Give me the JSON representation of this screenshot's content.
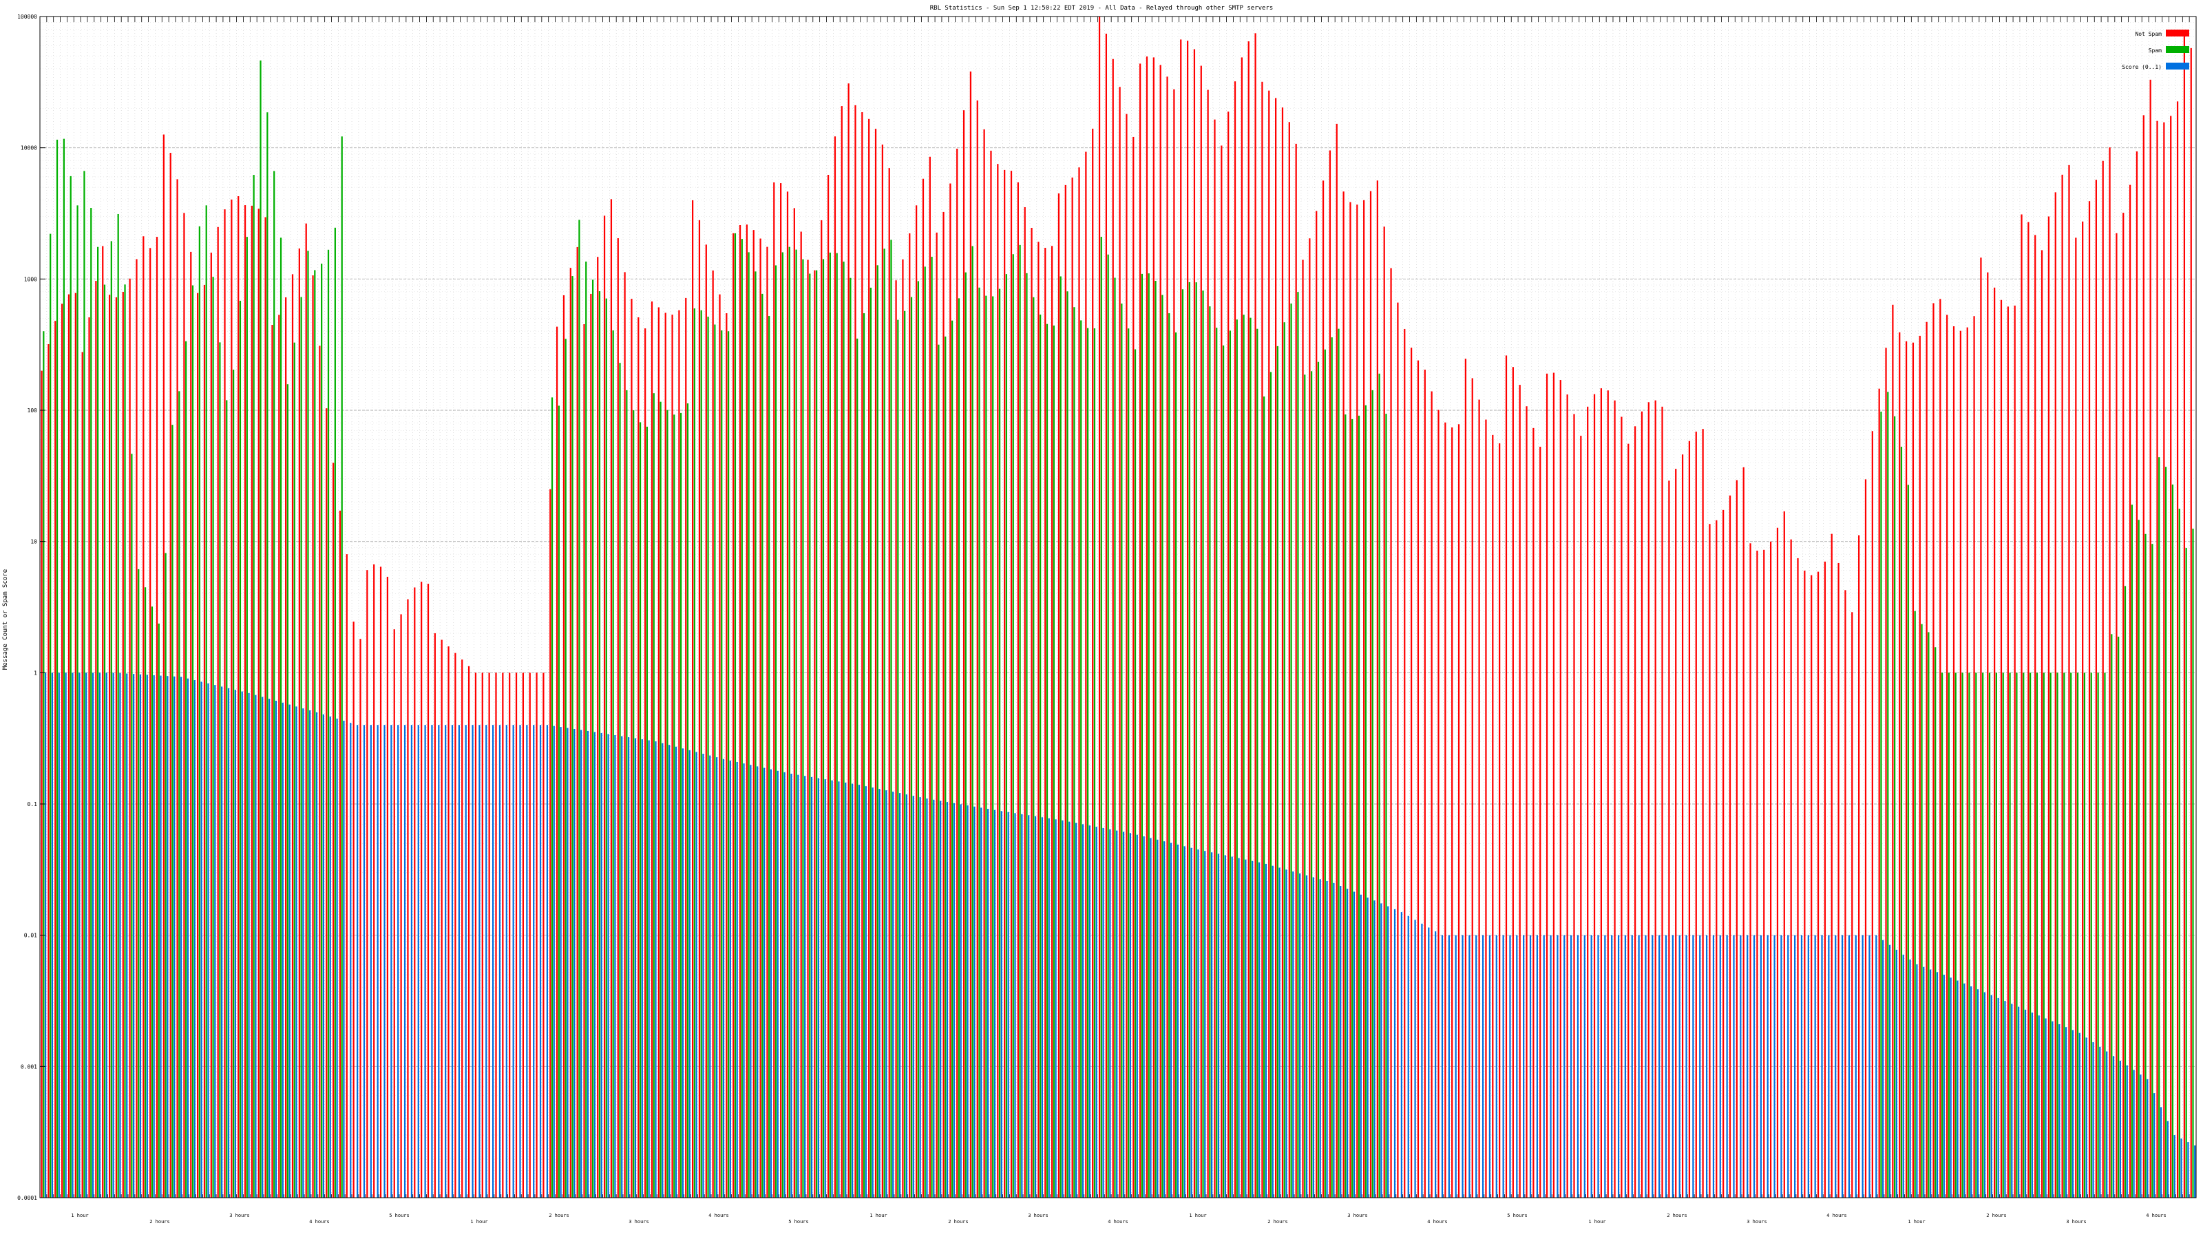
{
  "chart_data": {
    "type": "bar",
    "title": "RBL Statistics - Sun Sep  1 12:50:22 EDT 2019 - All Data - Relayed through other SMTP servers",
    "ylabel": "Message Count or Spam Score",
    "xlabel": "",
    "yscale": "log",
    "ylim": [
      0.0001,
      100000
    ],
    "yticks": [
      "0.0001",
      "0.001",
      "0.01",
      "0.1",
      "1",
      "10",
      "100",
      "1000",
      "10000",
      "100000"
    ],
    "grid": true,
    "legend_position": "top-right",
    "series": [
      {
        "name": "Not Spam",
        "color": "#ff0000",
        "anchors": [
          [
            0,
            200
          ],
          [
            6,
            450
          ],
          [
            10,
            1500
          ],
          [
            16,
            2300
          ],
          [
            18,
            6000
          ],
          [
            24,
            600
          ],
          [
            30,
            4000
          ],
          [
            34,
            1000
          ],
          [
            40,
            2000
          ],
          [
            46,
            3
          ],
          [
            48,
            3
          ],
          [
            52,
            3
          ],
          [
            58,
            2
          ],
          [
            64,
            1
          ],
          [
            70,
            1
          ],
          [
            74,
            1
          ],
          [
            76,
            400
          ],
          [
            80,
            1000
          ],
          [
            84,
            5000
          ],
          [
            90,
            500
          ],
          [
            96,
            2000
          ],
          [
            102,
            1000
          ],
          [
            108,
            3000
          ],
          [
            114,
            1000
          ],
          [
            120,
            30000
          ],
          [
            126,
            2000
          ],
          [
            132,
            5000
          ],
          [
            138,
            40000
          ],
          [
            144,
            6000
          ],
          [
            150,
            3000
          ],
          [
            156,
            50000
          ],
          [
            162,
            20000
          ],
          [
            168,
            40000
          ],
          [
            174,
            10000
          ],
          [
            180,
            50000
          ],
          [
            186,
            3000
          ],
          [
            192,
            10000
          ],
          [
            198,
            4000
          ],
          [
            204,
            200
          ],
          [
            210,
            150
          ],
          [
            216,
            120
          ],
          [
            222,
            90
          ],
          [
            228,
            70
          ],
          [
            234,
            60
          ],
          [
            240,
            50
          ],
          [
            246,
            30
          ],
          [
            252,
            20
          ],
          [
            258,
            15
          ],
          [
            264,
            10
          ],
          [
            268,
            5
          ],
          [
            272,
            300
          ],
          [
            274,
            700
          ],
          [
            280,
            800
          ],
          [
            286,
            1000
          ],
          [
            292,
            1500
          ],
          [
            296,
            2000
          ],
          [
            300,
            4000
          ],
          [
            306,
            5000
          ],
          [
            312,
            30000
          ],
          [
            316,
            50000
          ],
          [
            317,
            50000
          ]
        ]
      },
      {
        "name": "Spam",
        "color": "#00b000",
        "anchors": [
          [
            0,
            400
          ],
          [
            3,
            25000
          ],
          [
            6,
            4000
          ],
          [
            10,
            1000
          ],
          [
            12,
            2000
          ],
          [
            14,
            4
          ],
          [
            18,
            4
          ],
          [
            20,
            300
          ],
          [
            24,
            5000
          ],
          [
            28,
            100
          ],
          [
            32,
            30000
          ],
          [
            36,
            300
          ],
          [
            40,
            2000
          ],
          [
            44,
            7000
          ],
          [
            46,
            0
          ],
          [
            74,
            0
          ],
          [
            76,
            100
          ],
          [
            80,
            3000
          ],
          [
            84,
            500
          ],
          [
            90,
            100
          ],
          [
            96,
            300
          ],
          [
            102,
            1000
          ],
          [
            108,
            700
          ],
          [
            114,
            1000
          ],
          [
            120,
            500
          ],
          [
            126,
            1000
          ],
          [
            132,
            700
          ],
          [
            138,
            1500
          ],
          [
            144,
            2000
          ],
          [
            150,
            700
          ],
          [
            156,
            1000
          ],
          [
            162,
            500
          ],
          [
            168,
            500
          ],
          [
            174,
            300
          ],
          [
            180,
            200
          ],
          [
            186,
            400
          ],
          [
            192,
            200
          ],
          [
            198,
            150
          ],
          [
            200,
            0
          ],
          [
            270,
            0
          ],
          [
            272,
            100
          ],
          [
            276,
            6
          ],
          [
            280,
            1
          ],
          [
            290,
            1
          ],
          [
            300,
            1
          ],
          [
            304,
            1
          ],
          [
            308,
            15
          ],
          [
            312,
            20
          ],
          [
            316,
            10
          ],
          [
            317,
            10
          ]
        ]
      },
      {
        "name": "Score (0..1)",
        "color": "#0070e0",
        "anchors": [
          [
            0,
            1.0
          ],
          [
            10,
            1.0
          ],
          [
            20,
            0.93
          ],
          [
            30,
            0.7
          ],
          [
            40,
            0.5
          ],
          [
            46,
            0.4
          ],
          [
            74,
            0.4
          ],
          [
            80,
            0.36
          ],
          [
            90,
            0.3
          ],
          [
            100,
            0.22
          ],
          [
            110,
            0.17
          ],
          [
            120,
            0.14
          ],
          [
            130,
            0.11
          ],
          [
            140,
            0.09
          ],
          [
            150,
            0.075
          ],
          [
            160,
            0.06
          ],
          [
            170,
            0.045
          ],
          [
            180,
            0.035
          ],
          [
            190,
            0.025
          ],
          [
            200,
            0.015
          ],
          [
            206,
            0.01
          ],
          [
            270,
            0.01
          ],
          [
            276,
            0.006
          ],
          [
            280,
            0.005
          ],
          [
            290,
            0.003
          ],
          [
            300,
            0.0018
          ],
          [
            310,
            0.0008
          ],
          [
            314,
            0.0003
          ],
          [
            317,
            0.00025
          ]
        ]
      }
    ],
    "bar_count": 318,
    "x_tick_labels": [
      "1 hour",
      "2 hours",
      "3 hours",
      "4 hours",
      "5 hours",
      "1 hour",
      "2 hours",
      "3 hours",
      "4 hours",
      "5 hours",
      "1 hour",
      "2 hours",
      "3 hours",
      "4 hours",
      "1 hour",
      "2 hours",
      "3 hours",
      "4 hours",
      "5 hours",
      "1 hour",
      "2 hours",
      "3 hours",
      "4 hours",
      "1 hour",
      "2 hours",
      "3 hours",
      "4 hours"
    ]
  }
}
